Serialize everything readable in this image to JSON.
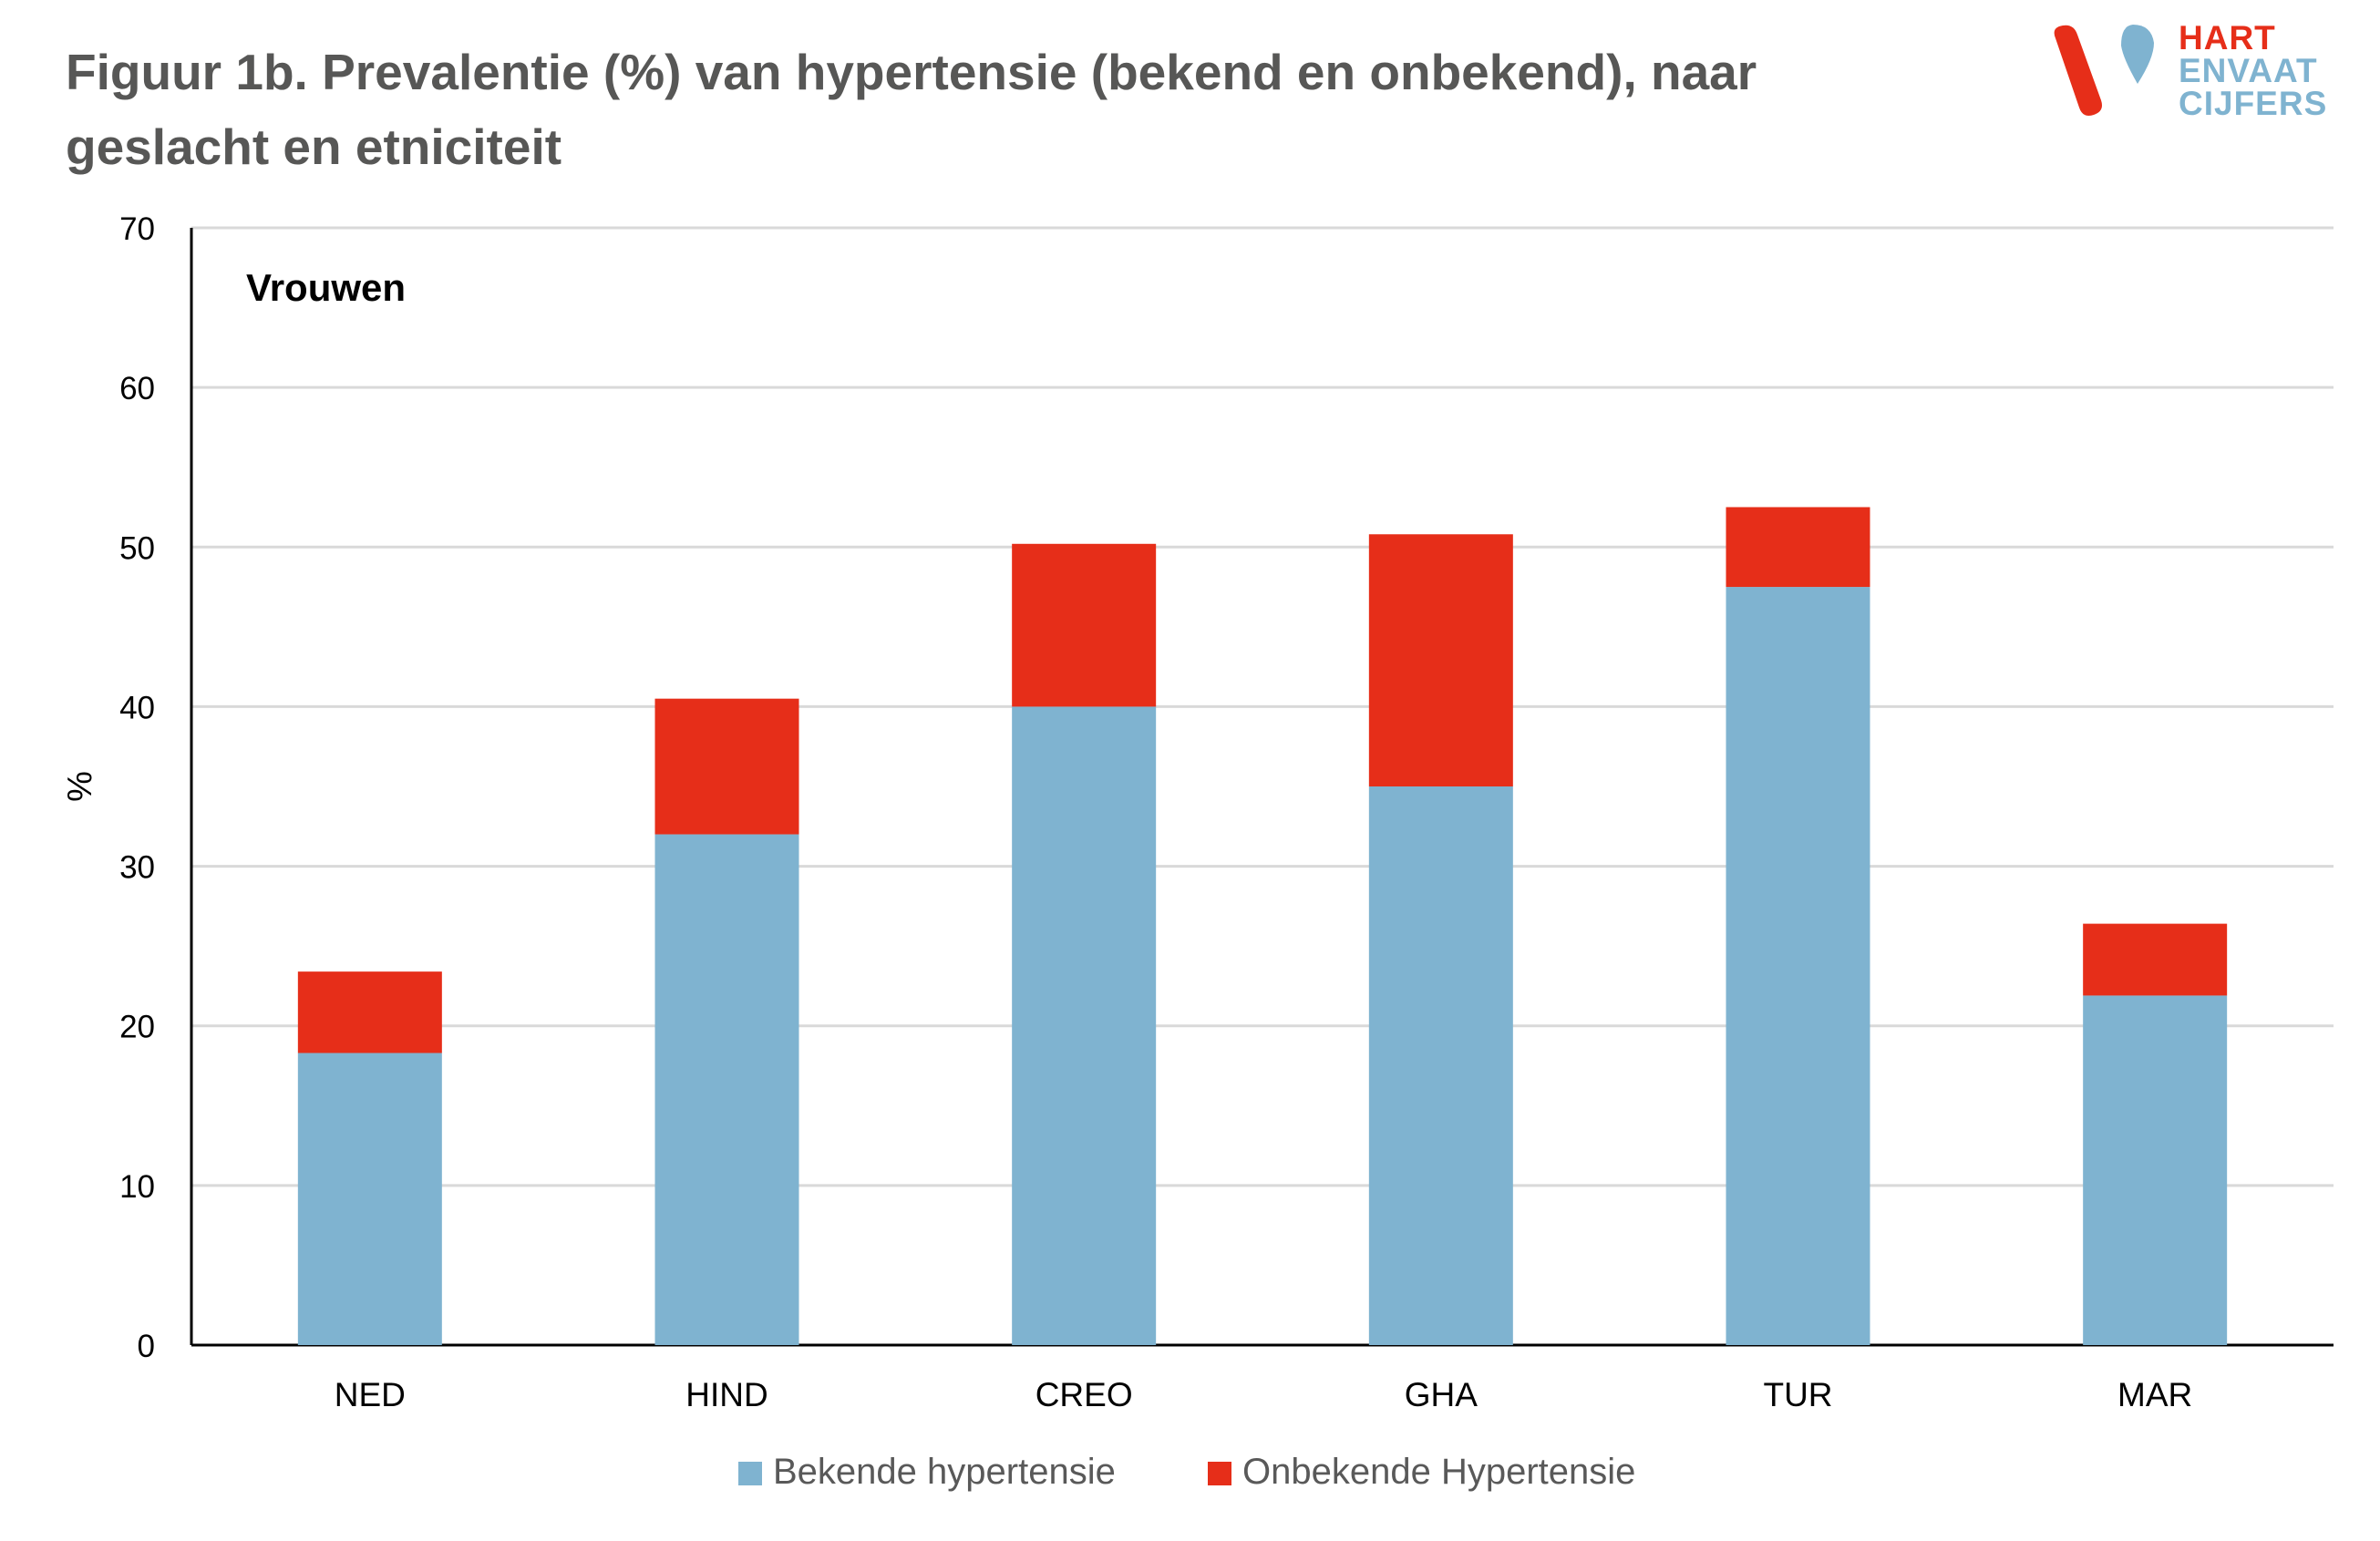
{
  "title": "Figuur 1b. Prevalentie (%) van hypertensie (bekend en onbekend), naar geslacht en etniciteit",
  "logo": {
    "line1": "HART",
    "line2a": "EN",
    "line2b": "VAAT",
    "line3": "CIJFERS"
  },
  "colors": {
    "known": "#7fb3d0",
    "unknown": "#e62e19",
    "title": "#575756",
    "grid": "#d9d9d9",
    "axis": "#000000"
  },
  "chart_data": {
    "type": "bar",
    "stacked": true,
    "panel_label": "Vrouwen",
    "ylabel": "%",
    "xlabel": "",
    "ylim": [
      0,
      70
    ],
    "yticks": [
      0,
      10,
      20,
      30,
      40,
      50,
      60,
      70
    ],
    "grid": true,
    "legend_position": "bottom",
    "categories": [
      "NED",
      "HIND",
      "CREO",
      "GHA",
      "TUR",
      "MAR"
    ],
    "series": [
      {
        "name": "Bekende hypertensie",
        "color": "#7fb3d0",
        "values": [
          18.3,
          32.0,
          40.0,
          35.0,
          47.5,
          21.9
        ]
      },
      {
        "name": "Onbekende Hypertensie",
        "color": "#e62e19",
        "values": [
          5.1,
          8.5,
          10.2,
          15.8,
          5.0,
          4.5
        ]
      }
    ]
  }
}
